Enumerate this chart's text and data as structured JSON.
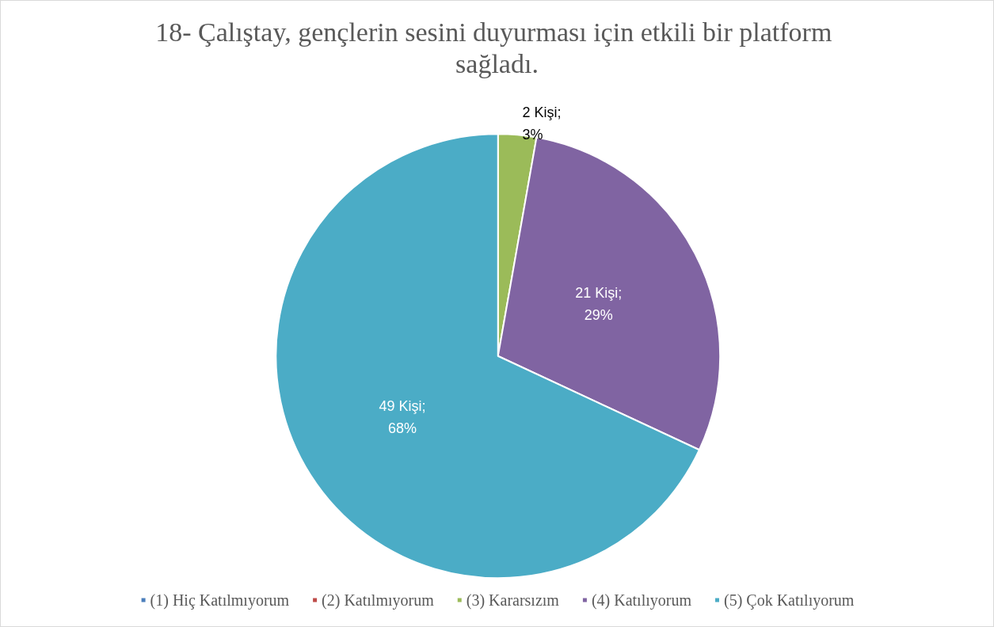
{
  "chart_data": {
    "type": "pie",
    "title": "18- Çalıştay, gençlerin sesini duyurması için etkili bir platform sağladı.",
    "categories": [
      "(1) Hiç Katılmıyorum",
      "(2) Katılmıyorum",
      "(3) Kararsızım",
      "(4) Katılıyorum",
      "(5) Çok Katılıyorum"
    ],
    "values": [
      0,
      0,
      2,
      21,
      49
    ],
    "colors": [
      "#4a7ebb",
      "#be4b48",
      "#9bbb59",
      "#8064a2",
      "#4bacc6"
    ],
    "value_labels": [
      null,
      null,
      "2 Kişi;\n3%",
      "21 Kişi;\n29%",
      "49 Kişi;\n68%"
    ],
    "legend": "bottom"
  }
}
